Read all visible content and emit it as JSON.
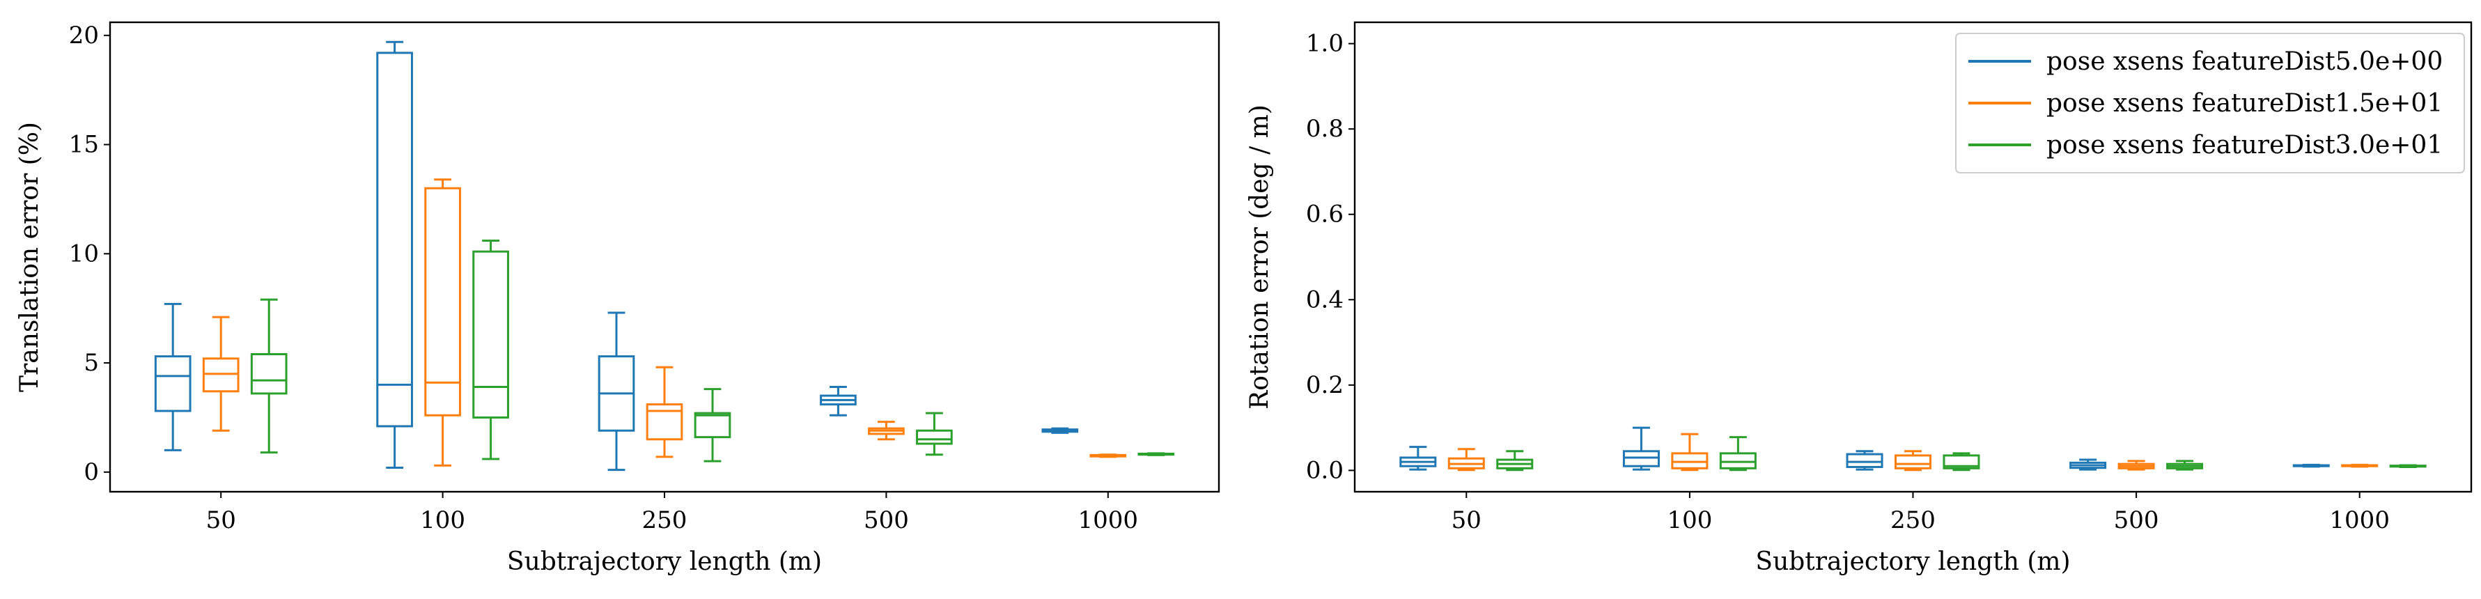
{
  "chart_data": [
    {
      "type": "box",
      "xlabel": "Subtrajectory length (m)",
      "ylabel": "Translation error (%)",
      "categories": [
        "50",
        "100",
        "250",
        "500",
        "1000"
      ],
      "ylim": [
        -0.9,
        20.6
      ],
      "yticks": [
        0,
        5,
        10,
        15,
        20
      ],
      "grid": false,
      "series": [
        {
          "name": "pose xsens featureDist5.0e+00",
          "color": "#1f77b4",
          "boxes": [
            {
              "whislo": 1.0,
              "q1": 2.8,
              "med": 4.4,
              "q3": 5.3,
              "whishi": 7.7
            },
            {
              "whislo": 0.2,
              "q1": 2.1,
              "med": 4.0,
              "q3": 19.2,
              "whishi": 19.7
            },
            {
              "whislo": 0.1,
              "q1": 1.9,
              "med": 3.6,
              "q3": 5.3,
              "whishi": 7.3
            },
            {
              "whislo": 2.6,
              "q1": 3.1,
              "med": 3.3,
              "q3": 3.5,
              "whishi": 3.9
            },
            {
              "whislo": 1.8,
              "q1": 1.85,
              "med": 1.9,
              "q3": 1.95,
              "whishi": 2.0
            }
          ]
        },
        {
          "name": "pose xsens featureDist1.5e+01",
          "color": "#ff7f0e",
          "boxes": [
            {
              "whislo": 1.9,
              "q1": 3.7,
              "med": 4.5,
              "q3": 5.2,
              "whishi": 7.1
            },
            {
              "whislo": 0.3,
              "q1": 2.6,
              "med": 4.1,
              "q3": 13.0,
              "whishi": 13.4
            },
            {
              "whislo": 0.7,
              "q1": 1.5,
              "med": 2.8,
              "q3": 3.1,
              "whishi": 4.8
            },
            {
              "whislo": 1.5,
              "q1": 1.75,
              "med": 1.9,
              "q3": 2.0,
              "whishi": 2.3
            },
            {
              "whislo": 0.7,
              "q1": 0.72,
              "med": 0.75,
              "q3": 0.78,
              "whishi": 0.8
            }
          ]
        },
        {
          "name": "pose xsens featureDist3.0e+01",
          "color": "#2ca02c",
          "boxes": [
            {
              "whislo": 0.9,
              "q1": 3.6,
              "med": 4.2,
              "q3": 5.4,
              "whishi": 7.9
            },
            {
              "whislo": 0.6,
              "q1": 2.5,
              "med": 3.9,
              "q3": 10.1,
              "whishi": 10.6
            },
            {
              "whislo": 0.5,
              "q1": 1.6,
              "med": 2.6,
              "q3": 2.7,
              "whishi": 3.8
            },
            {
              "whislo": 0.8,
              "q1": 1.3,
              "med": 1.5,
              "q3": 1.9,
              "whishi": 2.7
            },
            {
              "whislo": 0.78,
              "q1": 0.8,
              "med": 0.82,
              "q3": 0.84,
              "whishi": 0.86
            }
          ]
        }
      ]
    },
    {
      "type": "box",
      "xlabel": "Subtrajectory length (m)",
      "ylabel": "Rotation error (deg / m)",
      "categories": [
        "50",
        "100",
        "250",
        "500",
        "1000"
      ],
      "ylim": [
        -0.05,
        1.05
      ],
      "yticks": [
        "0.0",
        "0.2",
        "0.4",
        "0.6",
        "0.8",
        "1.0"
      ],
      "grid": false,
      "legend_position": "top-right",
      "series": [
        {
          "name": "pose xsens featureDist5.0e+00",
          "color": "#1f77b4",
          "boxes": [
            {
              "whislo": 0.002,
              "q1": 0.01,
              "med": 0.02,
              "q3": 0.03,
              "whislo_note": "",
              "whishi": 0.055
            },
            {
              "whislo": 0.002,
              "q1": 0.01,
              "med": 0.03,
              "q3": 0.045,
              "whishi": 0.1
            },
            {
              "whislo": 0.002,
              "q1": 0.008,
              "med": 0.02,
              "q3": 0.038,
              "whishi": 0.045
            },
            {
              "whislo": 0.002,
              "q1": 0.006,
              "med": 0.012,
              "q3": 0.018,
              "whishi": 0.025
            },
            {
              "whislo": 0.009,
              "q1": 0.01,
              "med": 0.011,
              "q3": 0.012,
              "whishi": 0.013
            }
          ]
        },
        {
          "name": "pose xsens featureDist1.5e+01",
          "color": "#ff7f0e",
          "boxes": [
            {
              "whislo": 0.001,
              "q1": 0.005,
              "med": 0.015,
              "q3": 0.028,
              "whishi": 0.05
            },
            {
              "whislo": 0.001,
              "q1": 0.005,
              "med": 0.02,
              "q3": 0.04,
              "whishi": 0.085
            },
            {
              "whislo": 0.001,
              "q1": 0.005,
              "med": 0.015,
              "q3": 0.035,
              "whishi": 0.045
            },
            {
              "whislo": 0.002,
              "q1": 0.005,
              "med": 0.01,
              "q3": 0.015,
              "whishi": 0.022
            },
            {
              "whislo": 0.009,
              "q1": 0.01,
              "med": 0.011,
              "q3": 0.012,
              "whishi": 0.013
            }
          ]
        },
        {
          "name": "pose xsens featureDist3.0e+01",
          "color": "#2ca02c",
          "boxes": [
            {
              "whislo": 0.001,
              "q1": 0.005,
              "med": 0.015,
              "q3": 0.025,
              "whishi": 0.045
            },
            {
              "whislo": 0.001,
              "q1": 0.005,
              "med": 0.02,
              "q3": 0.04,
              "whishi": 0.078
            },
            {
              "whislo": 0.001,
              "q1": 0.005,
              "med": 0.01,
              "q3": 0.035,
              "whishi": 0.04
            },
            {
              "whislo": 0.002,
              "q1": 0.005,
              "med": 0.01,
              "q3": 0.015,
              "whishi": 0.022
            },
            {
              "whislo": 0.008,
              "q1": 0.009,
              "med": 0.01,
              "q3": 0.011,
              "whishi": 0.012
            }
          ]
        }
      ]
    }
  ]
}
